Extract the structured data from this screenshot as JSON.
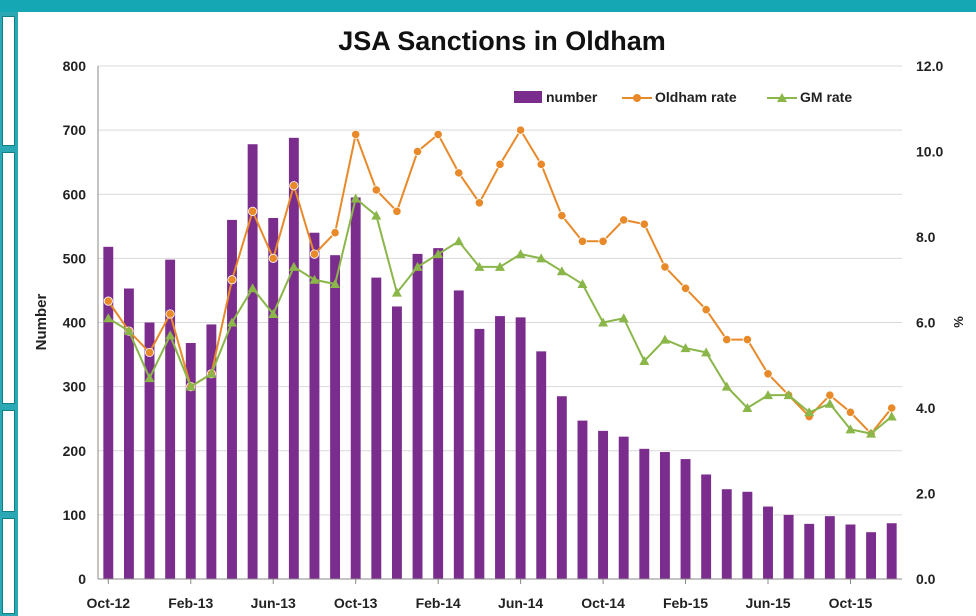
{
  "chart_data": {
    "type": "bar",
    "title": "JSA Sanctions in Oldham",
    "ylabel": "Number",
    "y2label": "%",
    "ylim": [
      0,
      800
    ],
    "y2lim": [
      0,
      12
    ],
    "y_ticks": [
      "0",
      "100",
      "200",
      "300",
      "400",
      "500",
      "600",
      "700",
      "800"
    ],
    "y2_ticks": [
      "0.0",
      "2.0",
      "4.0",
      "6.0",
      "8.0",
      "10.0",
      "12.0"
    ],
    "x_tick_labels": [
      "Oct-12",
      "Feb-13",
      "Jun-13",
      "Oct-13",
      "Feb-14",
      "Jun-14",
      "Oct-14",
      "Feb-15",
      "Jun-15",
      "Oct-15"
    ],
    "x_tick_every": 4,
    "grid": true,
    "legend_position": "top-right",
    "categories": [
      "Oct-12",
      "Nov-12",
      "Dec-12",
      "Jan-13",
      "Feb-13",
      "Mar-13",
      "Apr-13",
      "May-13",
      "Jun-13",
      "Jul-13",
      "Aug-13",
      "Sep-13",
      "Oct-13",
      "Nov-13",
      "Dec-13",
      "Jan-14",
      "Feb-14",
      "Mar-14",
      "Apr-14",
      "May-14",
      "Jun-14",
      "Jul-14",
      "Aug-14",
      "Sep-14",
      "Oct-14",
      "Nov-14",
      "Dec-14",
      "Jan-15",
      "Feb-15",
      "Mar-15",
      "Apr-15",
      "May-15",
      "Jun-15",
      "Jul-15",
      "Aug-15",
      "Sep-15",
      "Oct-15",
      "Nov-15",
      "Dec-15"
    ],
    "series": [
      {
        "name": "number",
        "type": "bar",
        "axis": "left",
        "color": "#7b2d8e",
        "values": [
          518,
          453,
          400,
          498,
          368,
          397,
          560,
          678,
          563,
          688,
          540,
          505,
          595,
          470,
          425,
          507,
          516,
          450,
          390,
          410,
          408,
          355,
          285,
          247,
          231,
          222,
          203,
          198,
          187,
          163,
          140,
          136,
          113,
          100,
          86,
          98,
          85,
          73,
          87
        ]
      },
      {
        "name": "Oldham rate",
        "type": "line",
        "axis": "right",
        "color": "#e8892a",
        "marker": "circle",
        "values": [
          6.5,
          5.8,
          5.3,
          6.2,
          4.5,
          4.8,
          7.0,
          8.6,
          7.5,
          9.2,
          7.6,
          8.1,
          10.4,
          9.1,
          8.6,
          10.0,
          10.4,
          9.5,
          8.8,
          9.7,
          10.5,
          9.7,
          8.5,
          7.9,
          7.9,
          8.4,
          8.3,
          7.3,
          6.8,
          6.3,
          5.6,
          5.6,
          4.8,
          4.3,
          3.8,
          4.3,
          3.9,
          3.4,
          4.0
        ]
      },
      {
        "name": "GM rate",
        "type": "line",
        "axis": "right",
        "color": "#8ab64a",
        "marker": "triangle",
        "values": [
          6.1,
          5.8,
          4.7,
          5.7,
          4.5,
          4.8,
          6.0,
          6.8,
          6.2,
          7.3,
          7.0,
          6.9,
          8.9,
          8.5,
          6.7,
          7.3,
          7.6,
          7.9,
          7.3,
          7.3,
          7.6,
          7.5,
          7.2,
          6.9,
          6.0,
          6.1,
          5.1,
          5.6,
          5.4,
          5.3,
          4.5,
          4.0,
          4.3,
          4.3,
          3.9,
          4.1,
          3.5,
          3.4,
          3.8
        ]
      }
    ]
  }
}
